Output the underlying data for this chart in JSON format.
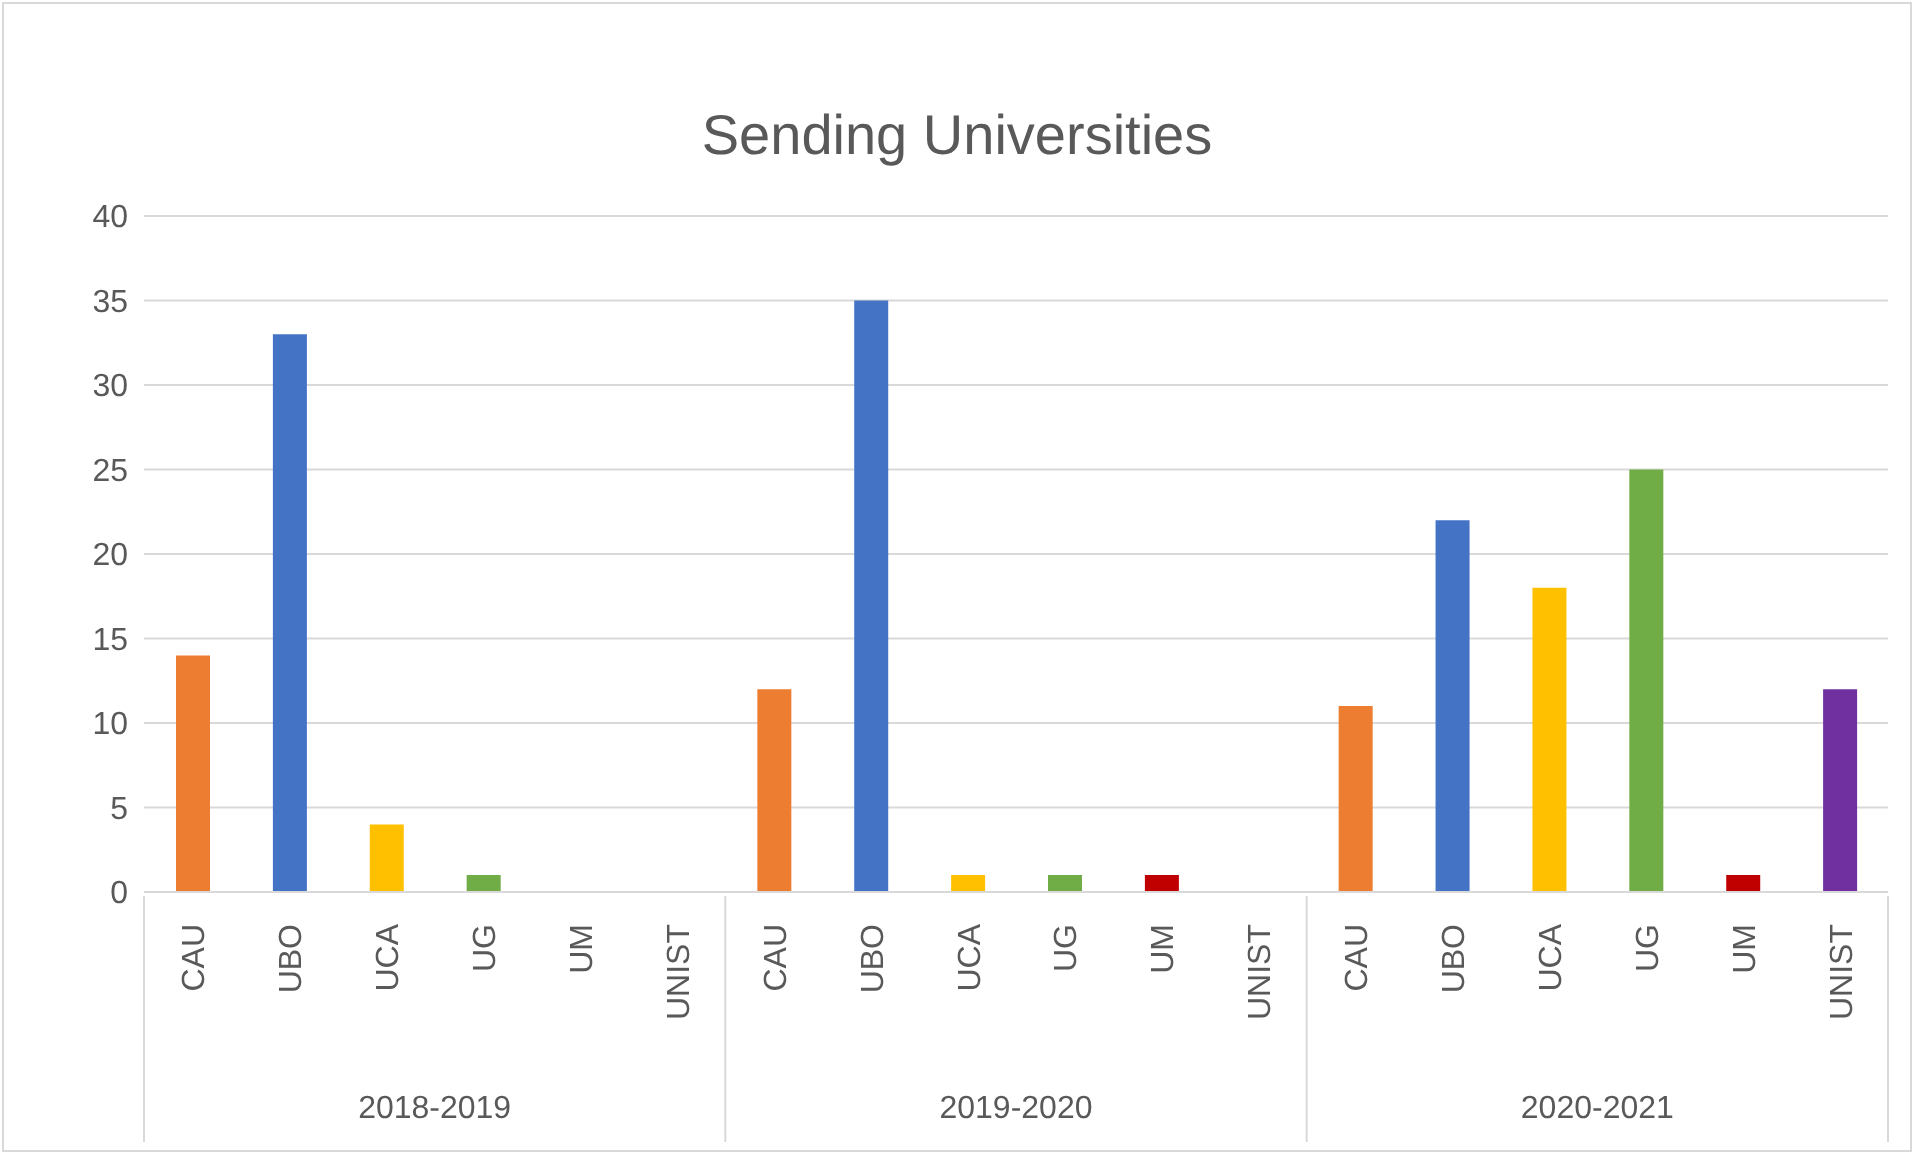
{
  "chart_data": {
    "type": "bar",
    "title": "Sending Universities",
    "categories": [
      "CAU",
      "UBO",
      "UCA",
      "UG",
      "UM",
      "UNIST",
      "CAU",
      "UBO",
      "UCA",
      "UG",
      "UM",
      "UNIST",
      "CAU",
      "UBO",
      "UCA",
      "UG",
      "UM",
      "UNIST"
    ],
    "values": [
      14,
      33,
      4,
      1,
      0,
      0,
      12,
      35,
      1,
      1,
      1,
      0,
      11,
      22,
      18,
      25,
      1,
      12
    ],
    "colors": [
      "#ed7d31",
      "#4472c4",
      "#ffc000",
      "#70ad47",
      "#c00000",
      "#7030a0",
      "#ed7d31",
      "#4472c4",
      "#ffc000",
      "#70ad47",
      "#c00000",
      "#7030a0",
      "#ed7d31",
      "#4472c4",
      "#ffc000",
      "#70ad47",
      "#c00000",
      "#7030a0"
    ],
    "annotations": [
      "2018-2019",
      "2019-2020",
      "2020-2021"
    ],
    "ylim": [
      0,
      40
    ],
    "yticks": [
      0,
      5,
      10,
      15,
      20,
      25,
      30,
      35,
      40
    ],
    "grid": "y"
  }
}
